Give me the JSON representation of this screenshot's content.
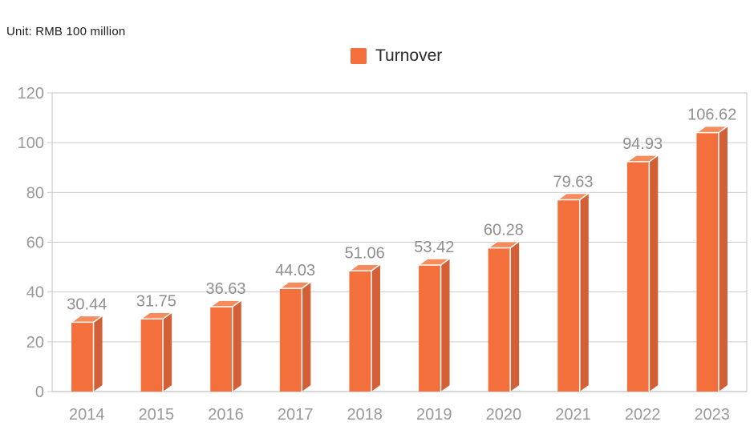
{
  "page": {
    "unit_label": "Unit: RMB 100 million"
  },
  "legend": {
    "label": "Turnover",
    "swatch_color": "#F3703D"
  },
  "chart_data": {
    "type": "bar",
    "title": "Turnover",
    "unit": "RMB 100 million",
    "categories": [
      "2014",
      "2015",
      "2016",
      "2017",
      "2018",
      "2019",
      "2020",
      "2021",
      "2022",
      "2023"
    ],
    "series": [
      {
        "name": "Turnover",
        "values": [
          30.44,
          31.75,
          36.63,
          44.03,
          51.06,
          53.42,
          60.28,
          79.63,
          94.93,
          106.62
        ]
      }
    ],
    "xlabel": "",
    "ylabel": "",
    "ylim": [
      0,
      120
    ],
    "yticks": [
      0,
      20,
      40,
      60,
      80,
      100,
      120
    ],
    "grid": true,
    "legend_position": "top-center",
    "bar_style": "3d",
    "colors": {
      "bar_front": "#F3703D",
      "bar_top": "#F78B5C",
      "bar_side": "#D25F35",
      "grid": "#CCCCCC",
      "plot_border": "#C6C6C6",
      "axis_line": "#B0B0B0",
      "axis_label": "#999999",
      "value_label": "#8F8F8F"
    }
  }
}
